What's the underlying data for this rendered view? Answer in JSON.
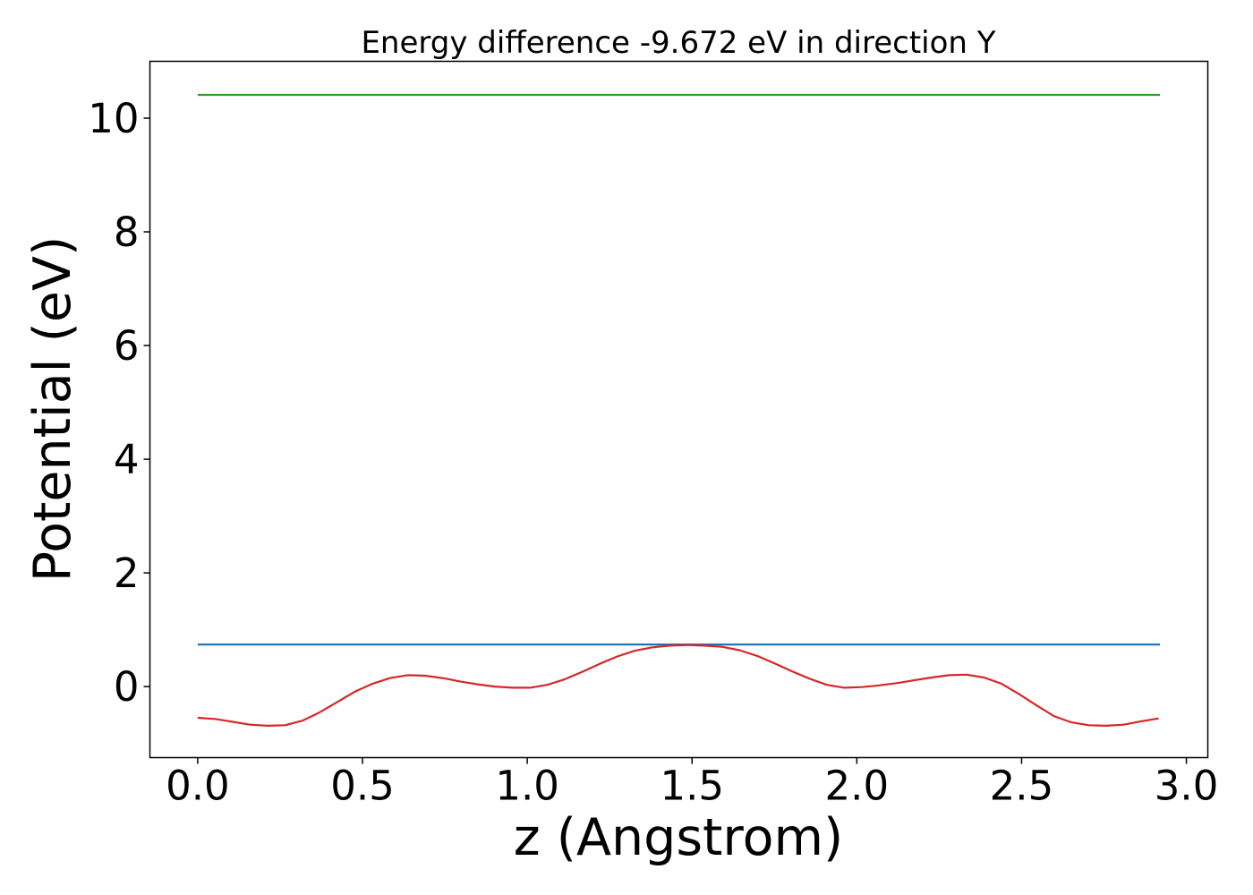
{
  "chart_data": {
    "type": "line",
    "title": "Energy difference -9.672 eV in direction Y",
    "xlabel": "z (Angstrom)",
    "ylabel": "Potential (eV)",
    "xlim": [
      -0.145,
      3.065
    ],
    "ylim": [
      -1.25,
      11.0
    ],
    "xticks": [
      0.0,
      0.5,
      1.0,
      1.5,
      2.0,
      2.5,
      3.0
    ],
    "xtick_labels": [
      "0.0",
      "0.5",
      "1.0",
      "1.5",
      "2.0",
      "2.5",
      "3.0"
    ],
    "yticks": [
      0,
      2,
      4,
      6,
      8,
      10
    ],
    "ytick_labels": [
      "0",
      "2",
      "4",
      "6",
      "8",
      "10"
    ],
    "grid": false,
    "legend": "none",
    "series": [
      {
        "color": "#2ca02c",
        "x": [
          0.0,
          2.92
        ],
        "y": [
          10.41,
          10.41
        ]
      },
      {
        "color": "#1f77b4",
        "x": [
          0.0,
          2.92
        ],
        "y": [
          0.74,
          0.74
        ]
      },
      {
        "color": "#d62728",
        "x": [
          0.0,
          0.053,
          0.106,
          0.159,
          0.212,
          0.265,
          0.318,
          0.371,
          0.424,
          0.477,
          0.531,
          0.584,
          0.637,
          0.69,
          0.743,
          0.796,
          0.849,
          0.902,
          0.955,
          1.008,
          1.061,
          1.114,
          1.167,
          1.22,
          1.273,
          1.326,
          1.379,
          1.432,
          1.485,
          1.538,
          1.591,
          1.644,
          1.697,
          1.75,
          1.803,
          1.856,
          1.909,
          1.962,
          2.015,
          2.068,
          2.121,
          2.174,
          2.227,
          2.28,
          2.333,
          2.386,
          2.439,
          2.492,
          2.545,
          2.598,
          2.651,
          2.704,
          2.757,
          2.81,
          2.863,
          2.916
        ],
        "y": [
          -0.55,
          -0.57,
          -0.62,
          -0.67,
          -0.69,
          -0.68,
          -0.6,
          -0.45,
          -0.27,
          -0.09,
          0.05,
          0.15,
          0.2,
          0.19,
          0.15,
          0.09,
          0.04,
          0.0,
          -0.02,
          -0.02,
          0.03,
          0.13,
          0.26,
          0.4,
          0.53,
          0.63,
          0.69,
          0.72,
          0.73,
          0.72,
          0.7,
          0.64,
          0.54,
          0.41,
          0.27,
          0.14,
          0.03,
          -0.02,
          -0.01,
          0.02,
          0.06,
          0.11,
          0.16,
          0.2,
          0.21,
          0.16,
          0.05,
          -0.13,
          -0.33,
          -0.52,
          -0.63,
          -0.68,
          -0.69,
          -0.67,
          -0.61,
          -0.56
        ]
      }
    ]
  }
}
